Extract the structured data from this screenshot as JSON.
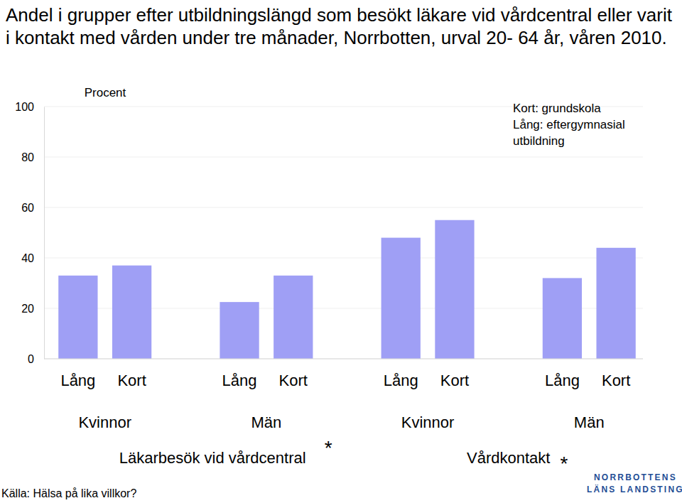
{
  "chart_data": {
    "type": "bar",
    "title": "Andel i grupper efter utbildningslängd som besökt läkare vid vårdcentral eller varit i kontakt med vården under tre månader, Norrbotten, urval 20- 64 år, våren 2010.",
    "y_label": "Procent",
    "categories": [
      "Lång",
      "Kort",
      "Lång",
      "Kort",
      "Lång",
      "Kort",
      "Lång",
      "Kort"
    ],
    "values": [
      33,
      37,
      22.5,
      33,
      48,
      55,
      32,
      44
    ],
    "color": "#9f9ff5",
    "groups": [
      "Kvinnor",
      "Män",
      "Kvinnor",
      "Män"
    ],
    "supergroups": [
      "Läkarbesök vid vårdcentral",
      "Vårdkontakt"
    ],
    "annotations": [
      "*",
      "*"
    ],
    "note": [
      "Kort: grundskola",
      "Lång: eftergymnasial",
      "utbildning"
    ],
    "source": "Källa: Hälsa på lika villkor?",
    "logo": [
      "NORRBOTTENS",
      "LÄNS LANDSTING"
    ],
    "ylim": [
      0,
      100
    ],
    "yticks": [
      0,
      20,
      40,
      60,
      80,
      100
    ],
    "grid": true
  }
}
